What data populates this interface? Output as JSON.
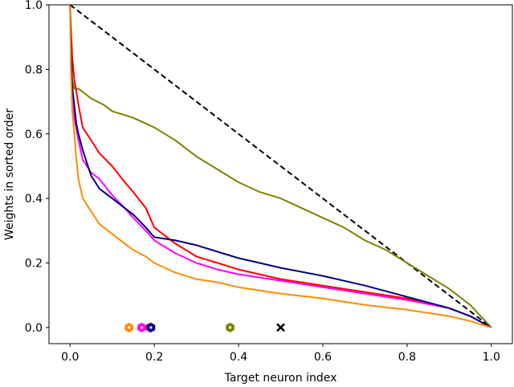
{
  "chart_data": {
    "type": "line",
    "title": "",
    "xlabel": "Target neuron index",
    "ylabel": "Weights in sorted order",
    "xlim": [
      -0.05,
      1.05
    ],
    "ylim": [
      -0.05,
      1.0
    ],
    "xticks": [
      0.0,
      0.2,
      0.4,
      0.6,
      0.8,
      1.0
    ],
    "yticks": [
      0.0,
      0.2,
      0.4,
      0.6,
      0.8,
      1.0
    ],
    "xtick_labels": [
      "0.0",
      "0.2",
      "0.4",
      "0.6",
      "0.8",
      "1.0"
    ],
    "ytick_labels": [
      "0.0",
      "0.2",
      "0.4",
      "0.6",
      "0.8",
      "1.0"
    ],
    "grid": false,
    "legend": false,
    "series": [
      {
        "color": "#000000",
        "dashed": true,
        "x": [
          0.0,
          1.0
        ],
        "y": [
          1.0,
          0.0
        ]
      },
      {
        "color": "#808000",
        "x": [
          0.0,
          0.005,
          0.01,
          0.02,
          0.05,
          0.08,
          0.1,
          0.15,
          0.2,
          0.25,
          0.3,
          0.35,
          0.4,
          0.45,
          0.5,
          0.55,
          0.6,
          0.65,
          0.7,
          0.75,
          0.8,
          0.85,
          0.9,
          0.95,
          1.0
        ],
        "y": [
          1.0,
          0.77,
          0.74,
          0.74,
          0.71,
          0.69,
          0.67,
          0.65,
          0.62,
          0.58,
          0.53,
          0.49,
          0.45,
          0.42,
          0.4,
          0.37,
          0.34,
          0.31,
          0.27,
          0.24,
          0.2,
          0.16,
          0.12,
          0.07,
          0.0
        ]
      },
      {
        "color": "#ff0000",
        "x": [
          0.0,
          0.005,
          0.01,
          0.02,
          0.03,
          0.05,
          0.07,
          0.1,
          0.13,
          0.15,
          0.18,
          0.2,
          0.25,
          0.3,
          0.35,
          0.4,
          0.45,
          0.5,
          0.6,
          0.7,
          0.8,
          0.9,
          0.95,
          1.0
        ],
        "y": [
          1.0,
          0.84,
          0.77,
          0.69,
          0.62,
          0.58,
          0.54,
          0.5,
          0.45,
          0.42,
          0.37,
          0.31,
          0.26,
          0.22,
          0.2,
          0.18,
          0.165,
          0.15,
          0.13,
          0.11,
          0.09,
          0.06,
          0.035,
          0.0
        ]
      },
      {
        "color": "#ff00ff",
        "x": [
          0.0,
          0.005,
          0.01,
          0.02,
          0.03,
          0.05,
          0.07,
          0.1,
          0.13,
          0.15,
          0.18,
          0.2,
          0.25,
          0.3,
          0.35,
          0.4,
          0.45,
          0.5,
          0.6,
          0.7,
          0.8,
          0.9,
          0.95,
          1.0
        ],
        "y": [
          1.0,
          0.7,
          0.65,
          0.58,
          0.52,
          0.48,
          0.46,
          0.41,
          0.37,
          0.34,
          0.3,
          0.27,
          0.23,
          0.2,
          0.18,
          0.165,
          0.155,
          0.145,
          0.125,
          0.105,
          0.085,
          0.06,
          0.035,
          0.0
        ]
      },
      {
        "color": "#000080",
        "x": [
          0.0,
          0.005,
          0.01,
          0.015,
          0.02,
          0.03,
          0.05,
          0.07,
          0.1,
          0.13,
          0.15,
          0.18,
          0.2,
          0.25,
          0.3,
          0.35,
          0.4,
          0.45,
          0.5,
          0.6,
          0.7,
          0.8,
          0.9,
          0.95,
          1.0
        ],
        "y": [
          1.0,
          0.75,
          0.69,
          0.63,
          0.6,
          0.55,
          0.47,
          0.43,
          0.4,
          0.37,
          0.35,
          0.31,
          0.28,
          0.27,
          0.255,
          0.235,
          0.215,
          0.2,
          0.185,
          0.16,
          0.13,
          0.095,
          0.06,
          0.035,
          0.0
        ]
      },
      {
        "color": "#ff8c00",
        "x": [
          0.0,
          0.002,
          0.005,
          0.01,
          0.015,
          0.02,
          0.03,
          0.05,
          0.07,
          0.1,
          0.13,
          0.15,
          0.18,
          0.2,
          0.25,
          0.3,
          0.35,
          0.4,
          0.45,
          0.5,
          0.6,
          0.7,
          0.8,
          0.9,
          0.95,
          1.0
        ],
        "y": [
          1.0,
          0.8,
          0.68,
          0.6,
          0.52,
          0.46,
          0.4,
          0.36,
          0.32,
          0.29,
          0.26,
          0.24,
          0.22,
          0.2,
          0.17,
          0.15,
          0.14,
          0.125,
          0.115,
          0.105,
          0.09,
          0.07,
          0.055,
          0.035,
          0.02,
          0.0
        ]
      }
    ],
    "markers": [
      {
        "x": 0.14,
        "y": 0.0,
        "shape": "hexagon",
        "color": "#ff8c00"
      },
      {
        "x": 0.17,
        "y": 0.0,
        "shape": "hexagon",
        "color": "#ff00ff"
      },
      {
        "x": 0.19,
        "y": 0.0,
        "shape": "hexagon",
        "color": "#ff0000"
      },
      {
        "x": 0.192,
        "y": 0.0,
        "shape": "hexagon",
        "color": "#000080"
      },
      {
        "x": 0.38,
        "y": 0.0,
        "shape": "hexagon",
        "color": "#808000"
      },
      {
        "x": 0.5,
        "y": 0.0,
        "shape": "x",
        "color": "#000000"
      }
    ]
  }
}
